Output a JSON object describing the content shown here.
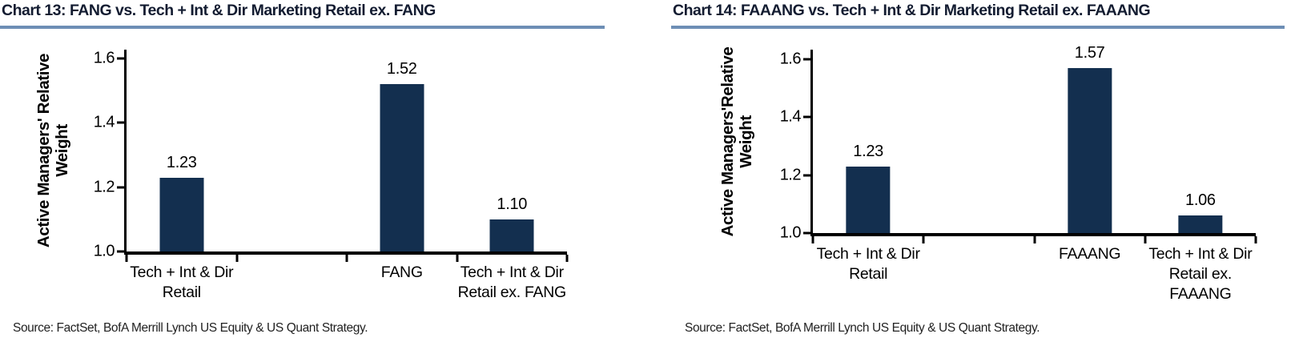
{
  "page": {
    "background": "#ffffff"
  },
  "colors": {
    "bar": "#132f4f",
    "title_text": "#131c31",
    "title_underline": "#6d8eb5",
    "axis": "#000000",
    "label_text": "#000000",
    "source_text": "#222222"
  },
  "chart_data": [
    {
      "type": "bar",
      "title": "Chart 13: FANG vs. Tech + Int & Dir Marketing Retail ex. FANG",
      "ylabel": "Active Managers' Relative\nWeight",
      "xlabel": "",
      "ylim": [
        1.0,
        1.6
      ],
      "yticks": [
        "1.0",
        "1.2",
        "1.4",
        "1.6"
      ],
      "grid": false,
      "legend": false,
      "categories": [
        "Tech + Int & Dir Retail",
        "",
        "FANG",
        "Tech + Int & Dir Retail ex. FANG"
      ],
      "category_lines": [
        [
          "Tech + Int & Dir",
          "Retail"
        ],
        [],
        [
          "FANG"
        ],
        [
          "Tech + Int & Dir",
          "Retail ex. FANG"
        ]
      ],
      "values": [
        1.23,
        null,
        1.52,
        1.1
      ],
      "value_labels": [
        "1.23",
        null,
        "1.52",
        "1.10"
      ],
      "source": "Source: FactSet, BofA Merrill Lynch US Equity & US Quant Strategy."
    },
    {
      "type": "bar",
      "title": "Chart 14: FAAANG vs. Tech + Int & Dir Marketing Retail ex. FAAANG",
      "ylabel": "Active Managers'Relative\nWeight",
      "xlabel": "",
      "ylim": [
        1.0,
        1.6
      ],
      "yticks": [
        "1.0",
        "1.2",
        "1.4",
        "1.6"
      ],
      "grid": false,
      "legend": false,
      "categories": [
        "Tech + Int & Dir Retail",
        "",
        "FAAANG",
        "Tech + Int & Dir Retail ex. FAAANG"
      ],
      "category_lines": [
        [
          "Tech + Int & Dir",
          "Retail"
        ],
        [],
        [
          "FAAANG"
        ],
        [
          "Tech + Int & Dir",
          "Retail ex.",
          "FAAANG"
        ]
      ],
      "values": [
        1.23,
        null,
        1.57,
        1.06
      ],
      "value_labels": [
        "1.23",
        null,
        "1.57",
        "1.06"
      ],
      "source": "Source: FactSet, BofA Merrill Lynch US Equity & US Quant Strategy."
    }
  ]
}
